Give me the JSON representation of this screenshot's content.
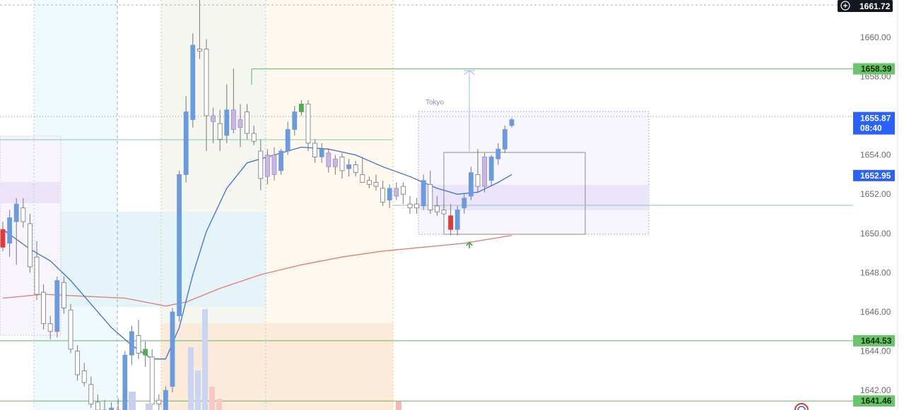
{
  "colors": {
    "up_candle": "#6a9be0",
    "down_candle": "#ffffff",
    "candle_outline": "#777777",
    "purple_candle": "#c9b6e6",
    "green_candle": "#4caf50",
    "red_candle": "#e53935",
    "ma_fast": "#3d6fd6",
    "ma_slow": "#e47a74",
    "level_green": "#5cb85c",
    "level_teal": "#7ec7c0",
    "tag_green_bg": "#6ac46a",
    "tag_blue_bg": "#2962ff",
    "tag_dark_bg": "#131722"
  },
  "top_price": {
    "icon": "plus-circle-icon",
    "value": "1661.72"
  },
  "price_tags": [
    {
      "label": "1658.39",
      "price": 1658.39,
      "kind": "green"
    },
    {
      "label": "1644.53",
      "price": 1644.53,
      "kind": "green"
    },
    {
      "label": "1641.46",
      "price": 1641.46,
      "kind": "green"
    }
  ],
  "current_tag": {
    "price": 1655.87,
    "label": "1655.87",
    "countdown": "08:40"
  },
  "blue_tag": {
    "price": 1652.95,
    "label": "1652.95"
  },
  "session_label": "Tokyo",
  "chart_data": {
    "type": "candlestick",
    "y_axis": {
      "min": 1641.0,
      "max": 1661.9,
      "ticks": [
        1642,
        1644,
        1646,
        1648,
        1650,
        1652,
        1654,
        1656,
        1658,
        1660
      ],
      "tick_labels": [
        "1642.00",
        "1644.00",
        "1646.00",
        "1648.00",
        "1650.00",
        "1652.00",
        "1654.00",
        "1656.00",
        "1658.00",
        "1660.00"
      ]
    },
    "grid": false,
    "levels": [
      {
        "name": "level-1658",
        "price": 1658.39
      },
      {
        "name": "level-1644",
        "price": 1644.53
      },
      {
        "name": "level-1641",
        "price": 1641.46
      }
    ],
    "candles": [
      {
        "o": 1650.2,
        "h": 1650.6,
        "l": 1649.1,
        "c": 1649.3,
        "style": "red"
      },
      {
        "o": 1649.5,
        "h": 1651.2,
        "l": 1648.8,
        "c": 1650.8,
        "style": "up"
      },
      {
        "o": 1650.6,
        "h": 1651.8,
        "l": 1648.4,
        "c": 1651.5,
        "style": "up"
      },
      {
        "o": 1651.3,
        "h": 1651.8,
        "l": 1650.3,
        "c": 1650.6,
        "style": "down"
      },
      {
        "o": 1650.5,
        "h": 1651.0,
        "l": 1648.0,
        "c": 1648.3,
        "style": "down"
      },
      {
        "o": 1648.8,
        "h": 1649.6,
        "l": 1646.6,
        "c": 1646.9,
        "style": "down"
      },
      {
        "o": 1647.0,
        "h": 1647.4,
        "l": 1645.1,
        "c": 1645.4,
        "style": "down"
      },
      {
        "o": 1645.4,
        "h": 1645.8,
        "l": 1644.6,
        "c": 1645.0,
        "style": "down"
      },
      {
        "o": 1645.0,
        "h": 1647.8,
        "l": 1644.7,
        "c": 1647.6,
        "style": "up"
      },
      {
        "o": 1647.5,
        "h": 1647.8,
        "l": 1645.9,
        "c": 1646.2,
        "style": "down"
      },
      {
        "o": 1646.1,
        "h": 1646.4,
        "l": 1643.9,
        "c": 1644.1,
        "style": "down"
      },
      {
        "o": 1644.0,
        "h": 1644.3,
        "l": 1642.5,
        "c": 1642.8,
        "style": "down"
      },
      {
        "o": 1643.0,
        "h": 1643.4,
        "l": 1642.2,
        "c": 1642.4,
        "style": "down"
      },
      {
        "o": 1642.3,
        "h": 1642.7,
        "l": 1641.1,
        "c": 1641.3,
        "style": "down"
      },
      {
        "o": 1641.4,
        "h": 1641.8,
        "l": 1640.6,
        "c": 1641.0,
        "style": "down"
      },
      {
        "o": 1641.0,
        "h": 1641.5,
        "l": 1640.5,
        "c": 1640.8,
        "style": "down"
      },
      {
        "o": 1640.8,
        "h": 1641.4,
        "l": 1640.5,
        "c": 1641.1,
        "style": "up"
      },
      {
        "o": 1641.0,
        "h": 1641.6,
        "l": 1640.6,
        "c": 1640.9,
        "style": "red"
      },
      {
        "o": 1640.8,
        "h": 1644.0,
        "l": 1640.5,
        "c": 1643.8,
        "style": "up"
      },
      {
        "o": 1643.8,
        "h": 1645.3,
        "l": 1643.3,
        "c": 1645.0,
        "style": "up"
      },
      {
        "o": 1644.8,
        "h": 1645.6,
        "l": 1643.6,
        "c": 1643.9,
        "style": "down"
      },
      {
        "o": 1644.1,
        "h": 1644.5,
        "l": 1643.2,
        "c": 1643.8,
        "style": "green"
      },
      {
        "o": 1643.7,
        "h": 1644.1,
        "l": 1641.0,
        "c": 1641.3,
        "style": "down"
      },
      {
        "o": 1641.3,
        "h": 1641.8,
        "l": 1640.7,
        "c": 1641.5,
        "style": "down"
      },
      {
        "o": 1641.0,
        "h": 1642.2,
        "l": 1640.7,
        "c": 1642.0,
        "style": "up"
      },
      {
        "o": 1642.2,
        "h": 1646.2,
        "l": 1641.9,
        "c": 1646.0,
        "style": "up"
      },
      {
        "o": 1645.8,
        "h": 1653.2,
        "l": 1645.5,
        "c": 1653.0,
        "style": "up"
      },
      {
        "o": 1653.0,
        "h": 1657.0,
        "l": 1652.6,
        "c": 1656.2,
        "style": "up"
      },
      {
        "o": 1655.8,
        "h": 1660.2,
        "l": 1655.4,
        "c": 1659.6,
        "style": "up"
      },
      {
        "o": 1659.3,
        "h": 1662.2,
        "l": 1658.9,
        "c": 1659.4,
        "style": "down"
      },
      {
        "o": 1659.4,
        "h": 1659.9,
        "l": 1654.2,
        "c": 1656.0,
        "style": "down"
      },
      {
        "o": 1656.0,
        "h": 1656.4,
        "l": 1654.6,
        "c": 1655.7,
        "style": "purple"
      },
      {
        "o": 1655.6,
        "h": 1656.3,
        "l": 1654.2,
        "c": 1654.8,
        "style": "down"
      },
      {
        "o": 1655.0,
        "h": 1657.6,
        "l": 1654.6,
        "c": 1656.3,
        "style": "up"
      },
      {
        "o": 1656.3,
        "h": 1658.4,
        "l": 1655.1,
        "c": 1655.3,
        "style": "purple"
      },
      {
        "o": 1655.4,
        "h": 1656.6,
        "l": 1654.4,
        "c": 1655.8,
        "style": "purple"
      },
      {
        "o": 1656.2,
        "h": 1656.6,
        "l": 1654.8,
        "c": 1655.1,
        "style": "down"
      },
      {
        "o": 1655.1,
        "h": 1655.5,
        "l": 1654.5,
        "c": 1654.7,
        "style": "down"
      },
      {
        "o": 1654.2,
        "h": 1654.8,
        "l": 1652.2,
        "c": 1652.8,
        "style": "down"
      },
      {
        "o": 1652.9,
        "h": 1654.3,
        "l": 1652.5,
        "c": 1654.0,
        "style": "purple"
      },
      {
        "o": 1654.0,
        "h": 1654.4,
        "l": 1652.7,
        "c": 1653.0,
        "style": "purple"
      },
      {
        "o": 1653.2,
        "h": 1654.3,
        "l": 1653.0,
        "c": 1654.2,
        "style": "up"
      },
      {
        "o": 1654.2,
        "h": 1655.7,
        "l": 1654.0,
        "c": 1655.3,
        "style": "up"
      },
      {
        "o": 1655.3,
        "h": 1656.5,
        "l": 1655.0,
        "c": 1656.2,
        "style": "up"
      },
      {
        "o": 1656.2,
        "h": 1656.8,
        "l": 1656.0,
        "c": 1656.6,
        "style": "green"
      },
      {
        "o": 1656.6,
        "h": 1656.8,
        "l": 1654.2,
        "c": 1654.6,
        "style": "down"
      },
      {
        "o": 1654.6,
        "h": 1654.8,
        "l": 1653.6,
        "c": 1653.9,
        "style": "down"
      },
      {
        "o": 1653.9,
        "h": 1654.6,
        "l": 1653.6,
        "c": 1654.3,
        "style": "up"
      },
      {
        "o": 1654.1,
        "h": 1654.3,
        "l": 1653.1,
        "c": 1653.4,
        "style": "purple"
      },
      {
        "o": 1653.4,
        "h": 1654.0,
        "l": 1653.0,
        "c": 1653.8,
        "style": "purple"
      },
      {
        "o": 1653.9,
        "h": 1654.1,
        "l": 1652.8,
        "c": 1653.2,
        "style": "down"
      },
      {
        "o": 1653.3,
        "h": 1653.8,
        "l": 1652.9,
        "c": 1653.5,
        "style": "up"
      },
      {
        "o": 1653.5,
        "h": 1653.7,
        "l": 1652.9,
        "c": 1653.1,
        "style": "down"
      },
      {
        "o": 1653.0,
        "h": 1653.9,
        "l": 1652.6,
        "c": 1652.6,
        "style": "down"
      },
      {
        "o": 1652.7,
        "h": 1652.9,
        "l": 1652.3,
        "c": 1652.5,
        "style": "down"
      },
      {
        "o": 1652.6,
        "h": 1653.0,
        "l": 1652.2,
        "c": 1652.4,
        "style": "down"
      },
      {
        "o": 1652.3,
        "h": 1652.7,
        "l": 1651.4,
        "c": 1651.6,
        "style": "down"
      },
      {
        "o": 1651.7,
        "h": 1652.5,
        "l": 1651.3,
        "c": 1652.3,
        "style": "up"
      },
      {
        "o": 1652.3,
        "h": 1652.6,
        "l": 1651.7,
        "c": 1651.9,
        "style": "purple"
      },
      {
        "o": 1652.0,
        "h": 1652.6,
        "l": 1651.5,
        "c": 1652.4,
        "style": "down"
      },
      {
        "o": 1651.5,
        "h": 1651.9,
        "l": 1651.0,
        "c": 1651.3,
        "style": "down"
      },
      {
        "o": 1651.3,
        "h": 1651.8,
        "l": 1651.0,
        "c": 1651.5,
        "style": "down"
      },
      {
        "o": 1651.4,
        "h": 1653.0,
        "l": 1651.2,
        "c": 1652.7,
        "style": "up"
      },
      {
        "o": 1652.5,
        "h": 1653.2,
        "l": 1651.0,
        "c": 1651.2,
        "style": "down"
      },
      {
        "o": 1651.4,
        "h": 1651.9,
        "l": 1650.9,
        "c": 1651.1,
        "style": "down"
      },
      {
        "o": 1651.2,
        "h": 1651.8,
        "l": 1650.8,
        "c": 1651.0,
        "style": "down"
      },
      {
        "o": 1650.9,
        "h": 1651.5,
        "l": 1649.9,
        "c": 1650.2,
        "style": "red"
      },
      {
        "o": 1650.2,
        "h": 1651.4,
        "l": 1649.9,
        "c": 1651.2,
        "style": "up"
      },
      {
        "o": 1651.3,
        "h": 1652.0,
        "l": 1651.0,
        "c": 1651.8,
        "style": "up"
      },
      {
        "o": 1651.9,
        "h": 1653.4,
        "l": 1651.7,
        "c": 1653.1,
        "style": "up"
      },
      {
        "o": 1653.0,
        "h": 1654.3,
        "l": 1652.1,
        "c": 1652.4,
        "style": "down"
      },
      {
        "o": 1652.4,
        "h": 1654.1,
        "l": 1652.1,
        "c": 1653.9,
        "style": "purple"
      },
      {
        "o": 1652.7,
        "h": 1654.0,
        "l": 1652.4,
        "c": 1653.9,
        "style": "up"
      },
      {
        "o": 1653.8,
        "h": 1654.6,
        "l": 1653.5,
        "c": 1654.3,
        "style": "up"
      },
      {
        "o": 1654.3,
        "h": 1655.5,
        "l": 1654.1,
        "c": 1655.3,
        "style": "up"
      },
      {
        "o": 1655.5,
        "h": 1655.9,
        "l": 1655.4,
        "c": 1655.8,
        "style": "up"
      }
    ],
    "ma_fast": [
      {
        "i": 0,
        "v": 1650.2
      },
      {
        "i": 4,
        "v": 1649.2
      },
      {
        "i": 7,
        "v": 1648.6
      },
      {
        "i": 10,
        "v": 1647.6
      },
      {
        "i": 13,
        "v": 1646.4
      },
      {
        "i": 16,
        "v": 1645.2
      },
      {
        "i": 19,
        "v": 1644.3
      },
      {
        "i": 22,
        "v": 1643.6
      },
      {
        "i": 24,
        "v": 1643.6
      },
      {
        "i": 26,
        "v": 1645.2
      },
      {
        "i": 28,
        "v": 1647.9
      },
      {
        "i": 30,
        "v": 1650.1
      },
      {
        "i": 33,
        "v": 1652.3
      },
      {
        "i": 36,
        "v": 1653.6
      },
      {
        "i": 40,
        "v": 1654.0
      },
      {
        "i": 44,
        "v": 1654.4
      },
      {
        "i": 48,
        "v": 1654.3
      },
      {
        "i": 52,
        "v": 1654.0
      },
      {
        "i": 56,
        "v": 1653.4
      },
      {
        "i": 60,
        "v": 1652.9
      },
      {
        "i": 64,
        "v": 1652.3
      },
      {
        "i": 67,
        "v": 1652.0
      },
      {
        "i": 70,
        "v": 1652.1
      },
      {
        "i": 73,
        "v": 1652.6
      },
      {
        "i": 75,
        "v": 1653.0
      }
    ],
    "ma_slow": [
      {
        "i": 0,
        "v": 1646.7
      },
      {
        "i": 6,
        "v": 1646.9
      },
      {
        "i": 12,
        "v": 1646.8
      },
      {
        "i": 18,
        "v": 1646.7
      },
      {
        "i": 24,
        "v": 1646.3
      },
      {
        "i": 27,
        "v": 1646.5
      },
      {
        "i": 32,
        "v": 1647.2
      },
      {
        "i": 38,
        "v": 1647.9
      },
      {
        "i": 44,
        "v": 1648.4
      },
      {
        "i": 50,
        "v": 1648.8
      },
      {
        "i": 56,
        "v": 1649.1
      },
      {
        "i": 62,
        "v": 1649.3
      },
      {
        "i": 68,
        "v": 1649.5
      },
      {
        "i": 75,
        "v": 1649.9
      }
    ]
  }
}
